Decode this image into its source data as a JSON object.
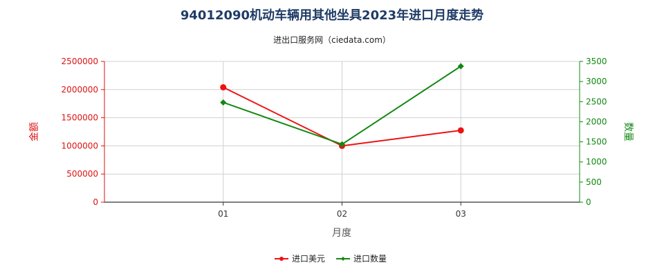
{
  "chart_data": {
    "type": "line",
    "title": "94012090机动车辆用其他坐具2023年进口月度走势",
    "subtitle": "进出口服务网（ciedata.com）",
    "xlabel": "月度",
    "ylabel_left": "金额",
    "ylabel_right": "数量",
    "categories": [
      "01",
      "02",
      "03"
    ],
    "y_left": {
      "min": 0,
      "max": 2500000,
      "ticks": [
        0,
        500000,
        1000000,
        1500000,
        2000000,
        2500000
      ],
      "tick_labels": [
        "0",
        "500000",
        "1000000",
        "1500000",
        "2000000",
        "2500000"
      ]
    },
    "y_right": {
      "min": 0,
      "max": 3500,
      "ticks": [
        0,
        500,
        1000,
        1500,
        2000,
        2500,
        3000,
        3500
      ],
      "tick_labels": [
        "0",
        "500",
        "1000",
        "1500",
        "2000",
        "2500",
        "3000",
        "3500"
      ]
    },
    "grid": true,
    "legend_position": "bottom",
    "series": [
      {
        "name": "进口美元",
        "axis": "left",
        "color": "#ee1111",
        "marker": "circle",
        "values": [
          2040000,
          1000000,
          1275000
        ]
      },
      {
        "name": "进口数量",
        "axis": "right",
        "color": "#118811",
        "marker": "diamond",
        "values": [
          2480,
          1440,
          3380
        ]
      }
    ]
  }
}
